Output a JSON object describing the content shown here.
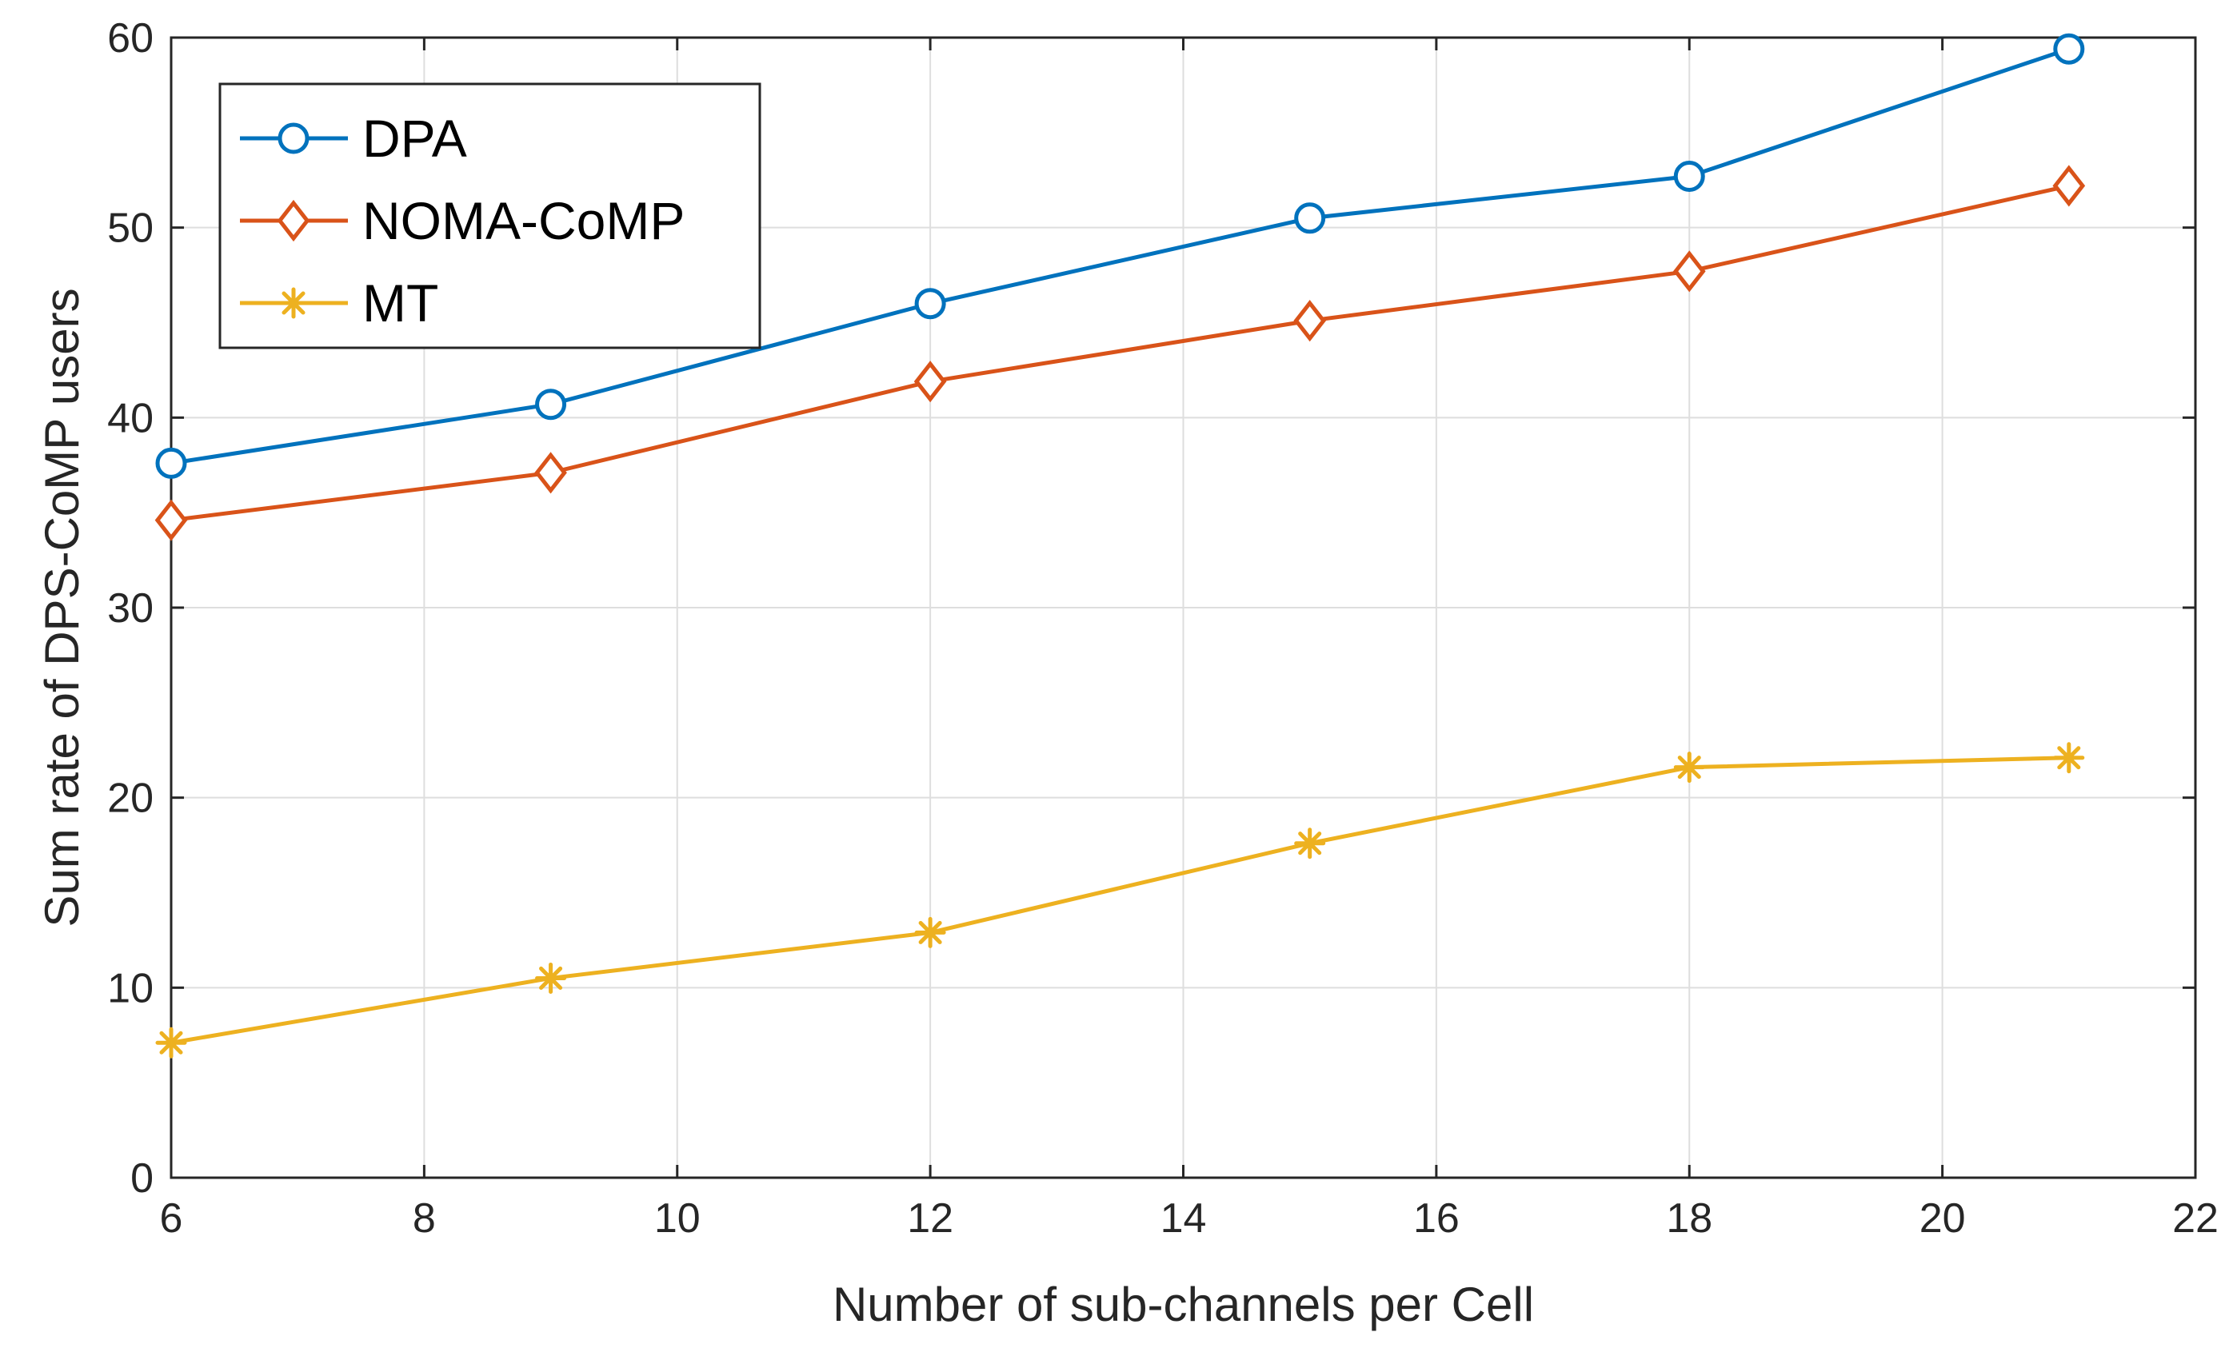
{
  "chart_data": {
    "type": "line",
    "title": "",
    "xlabel": "Number of sub-channels per Cell",
    "ylabel": "Sum rate of DPS-CoMP users",
    "xlim": [
      6,
      22
    ],
    "ylim": [
      0,
      60
    ],
    "xticks": [
      6,
      8,
      10,
      12,
      14,
      16,
      18,
      20,
      22
    ],
    "yticks": [
      0,
      10,
      20,
      30,
      40,
      50,
      60
    ],
    "grid": true,
    "legend_position": "top-left",
    "x": [
      6,
      9,
      12,
      15,
      18,
      21
    ],
    "series": [
      {
        "name": "DPA",
        "marker": "circle",
        "color": "#0072BD",
        "values": [
          37.6,
          40.7,
          46.0,
          50.5,
          52.7,
          59.4
        ]
      },
      {
        "name": "NOMA-CoMP",
        "marker": "diamond",
        "color": "#D95319",
        "values": [
          34.6,
          37.1,
          41.9,
          45.1,
          47.7,
          52.2
        ]
      },
      {
        "name": "MT",
        "marker": "asterisk",
        "color": "#EDB120",
        "values": [
          7.1,
          10.5,
          12.9,
          17.6,
          21.6,
          22.1
        ]
      }
    ]
  }
}
